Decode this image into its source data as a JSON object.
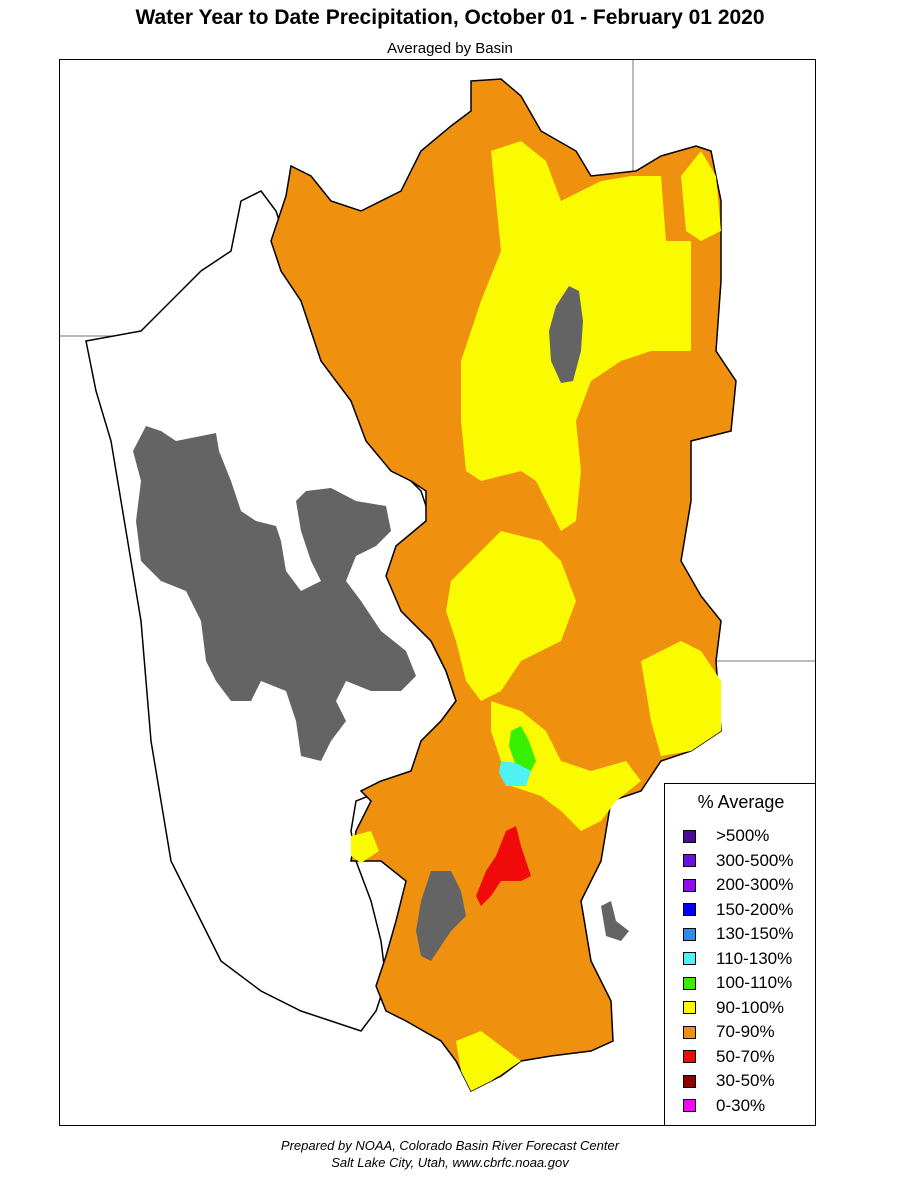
{
  "title": "Water Year to Date Precipitation, October 01  - February 01 2020",
  "subtitle": "Averaged by Basin",
  "legend": {
    "title": "% Average",
    "items": [
      {
        "label": ">500%",
        "color": "#4b0a96"
      },
      {
        "label": "300-500%",
        "color": "#6a0ee6"
      },
      {
        "label": "200-300%",
        "color": "#8a10f2"
      },
      {
        "label": "150-200%",
        "color": "#0000ff"
      },
      {
        "label": "130-150%",
        "color": "#2d8cf0"
      },
      {
        "label": "110-130%",
        "color": "#4ff2f2"
      },
      {
        "label": "100-110%",
        "color": "#36f000"
      },
      {
        "label": "90-100%",
        "color": "#fafa00"
      },
      {
        "label": "70-90%",
        "color": "#f0900f"
      },
      {
        "label": "50-70%",
        "color": "#f00a0a"
      },
      {
        "label": "30-50%",
        "color": "#8c0000"
      },
      {
        "label": "0-30%",
        "color": "#f00af0"
      }
    ]
  },
  "map_colors": {
    "lake": "#646464",
    "basin_70_90": "#f0900f",
    "basin_90_100": "#fafa00",
    "basin_100_110": "#36f000",
    "basin_110_130": "#4ff2f2",
    "basin_50_70": "#f00a0a",
    "outline": "#000000",
    "state_line": "#666666"
  },
  "footer": {
    "line1": "Prepared by NOAA, Colorado Basin River Forecast Center",
    "line2": "Salt Lake City, Utah, www.cbrfc.noaa.gov"
  }
}
